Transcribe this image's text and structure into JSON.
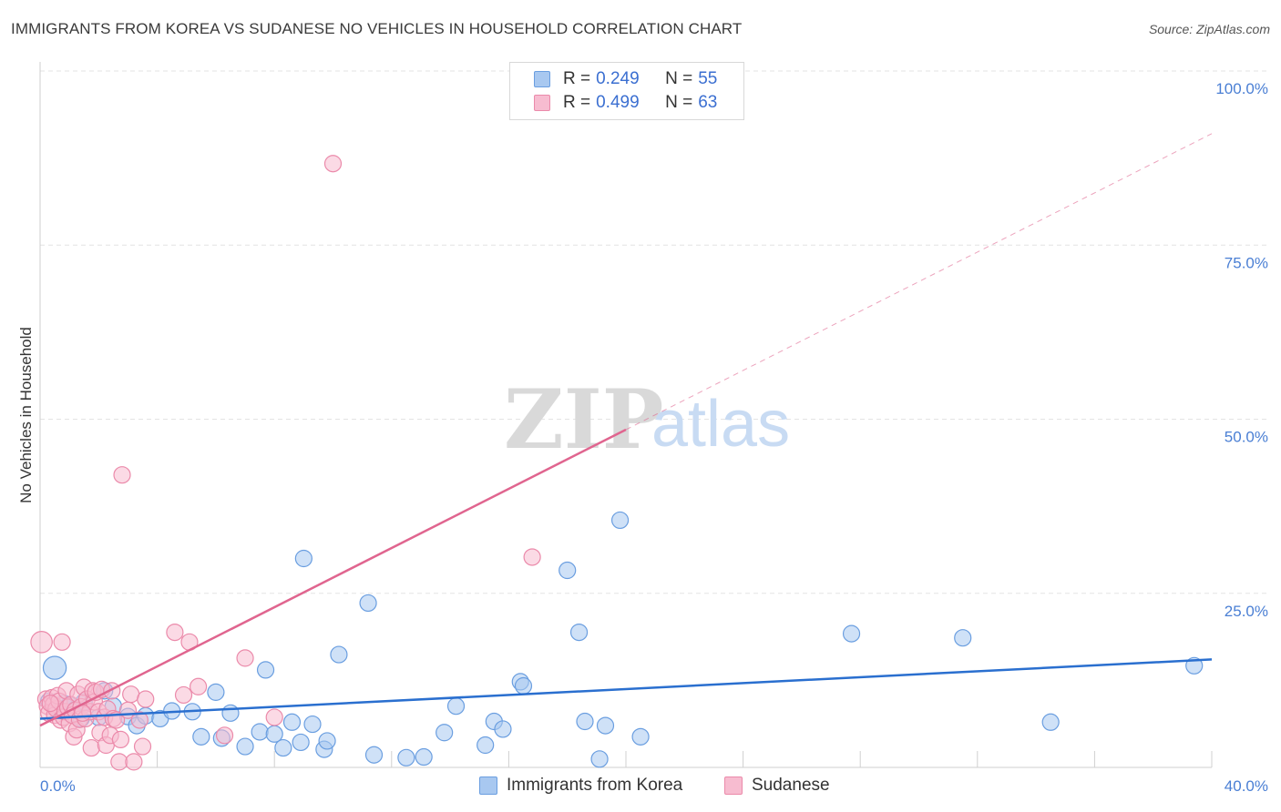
{
  "title": "IMMIGRANTS FROM KOREA VS SUDANESE NO VEHICLES IN HOUSEHOLD CORRELATION CHART",
  "source": "Source: ZipAtlas.com",
  "colors": {
    "blue_fill": "#a8c8f0",
    "blue_stroke": "#6a9ee0",
    "blue_line": "#2a6fcf",
    "pink_fill": "#f7bcd0",
    "pink_stroke": "#eb8aaa",
    "pink_line": "#e0658f",
    "tick_text": "#4a7fd4",
    "grid": "#e3e3e3"
  },
  "legend": {
    "rows": [
      {
        "key": "R =",
        "r": "0.249",
        "n_key": "N =",
        "n": "55",
        "series": "blue"
      },
      {
        "key": "R =",
        "r": "0.499",
        "n_key": "N =",
        "n": "63",
        "series": "pink"
      }
    ]
  },
  "bottom_legend": {
    "korea": "Immigrants from Korea",
    "sudanese": "Sudanese"
  },
  "chart_data": {
    "type": "scatter",
    "title": "IMMIGRANTS FROM KOREA VS SUDANESE NO VEHICLES IN HOUSEHOLD CORRELATION CHART",
    "xlabel": "",
    "ylabel": "No Vehicles in Household",
    "xlim": [
      0,
      40
    ],
    "ylim": [
      0,
      100
    ],
    "x_tick_labels": [
      "0.0%",
      "40.0%"
    ],
    "y_tick_labels": [
      {
        "value": 25,
        "label": "25.0%"
      },
      {
        "value": 50,
        "label": "50.0%"
      },
      {
        "value": 75,
        "label": "75.0%"
      },
      {
        "value": 100,
        "label": "100.0%"
      }
    ],
    "grid": true,
    "watermark": "ZIPatlas",
    "series": [
      {
        "name": "Immigrants from Korea",
        "color": "blue",
        "R": 0.249,
        "N": 55,
        "trend": {
          "x0": 0,
          "y0": 7.0,
          "x1": 40,
          "y1": 15.5,
          "dashed_extension": false
        },
        "points": [
          [
            0.5,
            14.3,
            1.4
          ],
          [
            0.3,
            9.5,
            1
          ],
          [
            0.6,
            8.5,
            1
          ],
          [
            0.8,
            9.2,
            1
          ],
          [
            1.0,
            9.0,
            1
          ],
          [
            1.2,
            8.3,
            1
          ],
          [
            1.4,
            7.0,
            1
          ],
          [
            1.5,
            9.4,
            1
          ],
          [
            2.0,
            7.2,
            1
          ],
          [
            2.2,
            11.0,
            1
          ],
          [
            2.5,
            8.8,
            1
          ],
          [
            3.0,
            7.3,
            1
          ],
          [
            3.3,
            6.0,
            1
          ],
          [
            3.6,
            7.4,
            1
          ],
          [
            4.1,
            7.0,
            1
          ],
          [
            4.5,
            8.1,
            1
          ],
          [
            5.2,
            8.0,
            1
          ],
          [
            5.5,
            4.4,
            1
          ],
          [
            6.0,
            10.8,
            1
          ],
          [
            6.2,
            4.2,
            1
          ],
          [
            6.5,
            7.8,
            1
          ],
          [
            7.0,
            3.0,
            1
          ],
          [
            7.5,
            5.1,
            1
          ],
          [
            7.7,
            14.0,
            1
          ],
          [
            8.0,
            4.8,
            1
          ],
          [
            8.3,
            2.8,
            1
          ],
          [
            8.6,
            6.5,
            1
          ],
          [
            8.9,
            3.6,
            1
          ],
          [
            9.0,
            30.0,
            1
          ],
          [
            9.3,
            6.2,
            1
          ],
          [
            9.7,
            2.6,
            1
          ],
          [
            9.8,
            3.8,
            1
          ],
          [
            10.2,
            16.2,
            1
          ],
          [
            11.2,
            23.6,
            1
          ],
          [
            11.4,
            1.8,
            1
          ],
          [
            12.5,
            1.4,
            1
          ],
          [
            13.1,
            1.5,
            1
          ],
          [
            13.8,
            5.0,
            1
          ],
          [
            14.2,
            8.8,
            1
          ],
          [
            15.2,
            3.2,
            1
          ],
          [
            15.5,
            6.6,
            1
          ],
          [
            15.8,
            5.5,
            1
          ],
          [
            16.4,
            12.3,
            1
          ],
          [
            16.5,
            11.7,
            1
          ],
          [
            18.0,
            28.3,
            1
          ],
          [
            18.4,
            19.4,
            1
          ],
          [
            18.6,
            6.6,
            1
          ],
          [
            19.1,
            1.2,
            1
          ],
          [
            19.3,
            6.0,
            1
          ],
          [
            19.8,
            35.5,
            1
          ],
          [
            20.5,
            4.4,
            1
          ],
          [
            27.7,
            19.2,
            1
          ],
          [
            31.5,
            18.6,
            1
          ],
          [
            34.5,
            6.5,
            1
          ],
          [
            39.4,
            14.6,
            1
          ]
        ]
      },
      {
        "name": "Sudanese",
        "color": "pink",
        "R": 0.499,
        "N": 63,
        "trend": {
          "x0": 0,
          "y0": 6.0,
          "x1": 20,
          "y1": 48.5,
          "dashed_to_x": 40,
          "dashed_to_y": 91
        },
        "points": [
          [
            0.05,
            18.0,
            1.3
          ],
          [
            0.2,
            9.8,
            1
          ],
          [
            0.25,
            8.8,
            1
          ],
          [
            0.3,
            7.8,
            1
          ],
          [
            0.4,
            10.0,
            1
          ],
          [
            0.45,
            9.0,
            1
          ],
          [
            0.5,
            7.5,
            1
          ],
          [
            0.55,
            8.4,
            1
          ],
          [
            0.6,
            10.3,
            1
          ],
          [
            0.65,
            9.5,
            1
          ],
          [
            0.7,
            6.8,
            1
          ],
          [
            0.75,
            18.0,
            1
          ],
          [
            0.8,
            7.2,
            1
          ],
          [
            0.85,
            8.0,
            1
          ],
          [
            0.9,
            11.0,
            1
          ],
          [
            0.95,
            8.6,
            1
          ],
          [
            1.0,
            6.3,
            1
          ],
          [
            1.05,
            9.0,
            1
          ],
          [
            1.1,
            7.5,
            1
          ],
          [
            1.15,
            4.4,
            1
          ],
          [
            1.2,
            8.2,
            1
          ],
          [
            1.25,
            5.4,
            1
          ],
          [
            1.3,
            10.5,
            1
          ],
          [
            1.35,
            6.9,
            1
          ],
          [
            1.4,
            8.7,
            1
          ],
          [
            1.5,
            11.5,
            1
          ],
          [
            1.55,
            7.0,
            1
          ],
          [
            1.6,
            9.8,
            1
          ],
          [
            1.7,
            8.0,
            1
          ],
          [
            1.75,
            2.8,
            1
          ],
          [
            1.8,
            11.0,
            1
          ],
          [
            1.85,
            9.4,
            1
          ],
          [
            1.9,
            10.8,
            1
          ],
          [
            2.0,
            8.0,
            1
          ],
          [
            2.05,
            5.0,
            1
          ],
          [
            2.1,
            11.2,
            1
          ],
          [
            2.2,
            7.2,
            1
          ],
          [
            2.25,
            3.2,
            1
          ],
          [
            2.3,
            8.4,
            1
          ],
          [
            2.4,
            4.6,
            1
          ],
          [
            2.45,
            11.0,
            1
          ],
          [
            2.5,
            7.0,
            1
          ],
          [
            2.6,
            6.8,
            1
          ],
          [
            2.7,
            0.8,
            1
          ],
          [
            2.75,
            4.0,
            1
          ],
          [
            2.8,
            42.0,
            1
          ],
          [
            3.0,
            8.2,
            1
          ],
          [
            3.1,
            10.5,
            1
          ],
          [
            3.2,
            0.8,
            1
          ],
          [
            3.4,
            6.8,
            1
          ],
          [
            3.5,
            3.0,
            1
          ],
          [
            3.6,
            9.8,
            1
          ],
          [
            4.6,
            19.4,
            1
          ],
          [
            4.9,
            10.4,
            1
          ],
          [
            5.1,
            18.0,
            1
          ],
          [
            5.4,
            11.6,
            1
          ],
          [
            6.3,
            4.6,
            1
          ],
          [
            7.0,
            15.7,
            1
          ],
          [
            8.0,
            7.2,
            1
          ],
          [
            10.0,
            86.7,
            1
          ],
          [
            16.8,
            30.2,
            1
          ],
          [
            0.35,
            9.2,
            1
          ],
          [
            1.45,
            7.8,
            1
          ]
        ]
      }
    ]
  }
}
